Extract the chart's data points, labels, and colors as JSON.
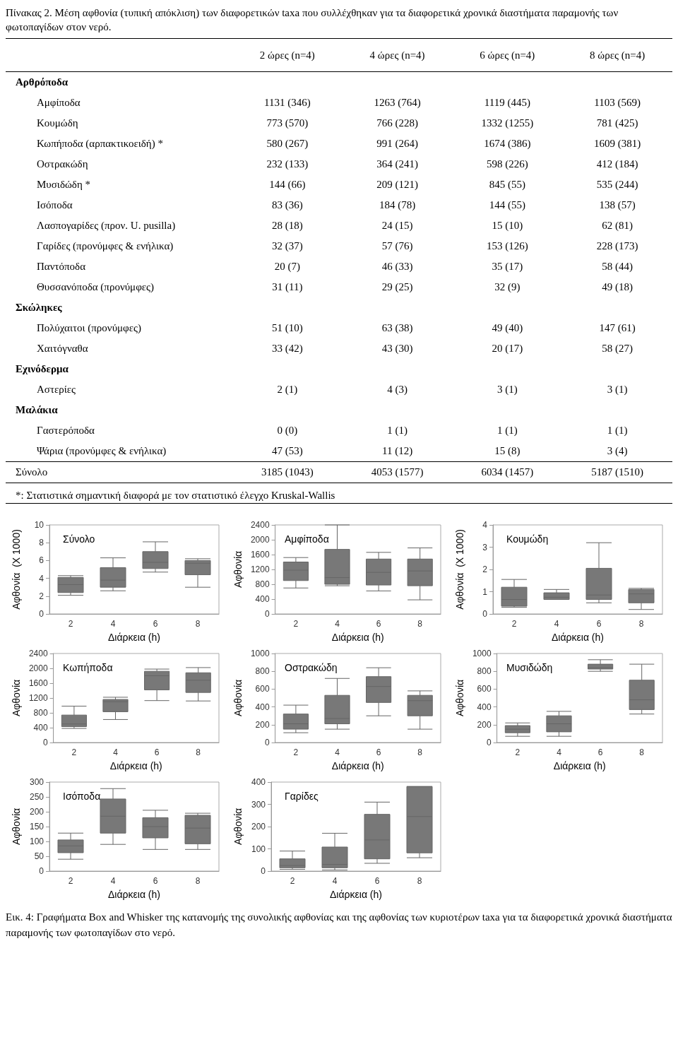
{
  "chart_data": [
    {
      "type": "other",
      "title": "Πίνακας 2. Μέση αφθονία (τυπική απόκλιση) των διαφορετικών taxa που συλλέχθηκαν για τα διαφορετικά χρονικά διαστήματα παραμονής των φωτοπαγίδων στον νερό.",
      "categories": [
        "2 ώρες (n=4)",
        "4 ώρες (n=4)",
        "6 ώρες (n=4)",
        "8 ώρες (n=4)"
      ],
      "y_categories": [
        "Αρθρόποδα",
        "Αμφίποδα",
        "Κουμώδη",
        "Κωπήποδα (αρπακτικοειδή) *",
        "Οστρακώδη",
        "Μυσιδώδη *",
        "Ισόποδα",
        "Λασπογαρίδες (προν. U. pusilla)",
        "Γαρίδες (προνύμφες & ενήλικα)",
        "Παντόποδα",
        "Θυσσανόποδα (προνύμφες)",
        "Σκώληκες",
        "Πολύχαιτοι (προνύμφες)",
        "Χαιτόγναθα",
        "Εχινόδερμα",
        "Αστερίες",
        "Μαλάκια",
        "Γαστερόποδα",
        "Ψάρια (προνύμφες & ενήλικα)",
        "Σύνολο"
      ],
      "cell_labels": [
        [
          null,
          null,
          null,
          null
        ],
        [
          "1131 (346)",
          "1263 (764)",
          "1119 (445)",
          "1103 (569)"
        ],
        [
          "773 (570)",
          "766 (228)",
          "1332 (1255)",
          "781 (425)"
        ],
        [
          "580 (267)",
          "991 (264)",
          "1674 (386)",
          "1609 (381)"
        ],
        [
          "232 (133)",
          "364 (241)",
          "598 (226)",
          "412 (184)"
        ],
        [
          "144 (66)",
          "209 (121)",
          "845 (55)",
          "535 (244)"
        ],
        [
          "83 (36)",
          "184 (78)",
          "144 (55)",
          "138 (57)"
        ],
        [
          "28 (18)",
          "24 (15)",
          "15 (10)",
          "62 (81)"
        ],
        [
          "32 (37)",
          "57 (76)",
          "153 (126)",
          "228 (173)"
        ],
        [
          "20 (7)",
          "46 (33)",
          "35 (17)",
          "58 (44)"
        ],
        [
          "31 (11)",
          "29 (25)",
          "32 (9)",
          "49 (18)"
        ],
        [
          null,
          null,
          null,
          null
        ],
        [
          "51 (10)",
          "63 (38)",
          "49 (40)",
          "147 (61)"
        ],
        [
          "33 (42)",
          "43 (30)",
          "20 (17)",
          "58 (27)"
        ],
        [
          null,
          null,
          null,
          null
        ],
        [
          "2 (1)",
          "4 (3)",
          "3 (1)",
          "3 (1)"
        ],
        [
          null,
          null,
          null,
          null
        ],
        [
          "0 (0)",
          "1 (1)",
          "1 (1)",
          "1 (1)"
        ],
        [
          "47 (53)",
          "11 (12)",
          "15 (8)",
          "3 (4)"
        ],
        [
          "3185 (1043)",
          "4053 (1577)",
          "6034 (1457)",
          "5187 (1510)"
        ]
      ],
      "annotations": [
        "*: Στατιστικά σημαντική διαφορά με τον στατιστικό έλεγχο Kruskal-Wallis"
      ]
    },
    {
      "type": "box",
      "title": "Σύνολο",
      "xlabel": "Διάρκεια (h)",
      "ylabel": "Αφθονία  (X 1000)",
      "categories": [
        "2",
        "4",
        "6",
        "8"
      ],
      "color": "#787878",
      "ylim": [
        0,
        10
      ],
      "yticks": [
        0,
        2,
        4,
        6,
        8,
        10
      ],
      "boxes": [
        {
          "low": 2.1,
          "q1": 2.4,
          "median": 3.3,
          "q3": 4.1,
          "high": 4.3
        },
        {
          "low": 2.6,
          "q1": 3.0,
          "median": 3.8,
          "q3": 5.2,
          "high": 6.3
        },
        {
          "low": 4.7,
          "q1": 5.1,
          "median": 5.8,
          "q3": 7.0,
          "high": 8.1
        },
        {
          "low": 3.0,
          "q1": 4.4,
          "median": 5.7,
          "q3": 6.0,
          "high": 6.2
        }
      ]
    },
    {
      "type": "box",
      "title": "Αμφίποδα",
      "xlabel": "Διάρκεια (h)",
      "ylabel": "Αφθονία",
      "categories": [
        "2",
        "4",
        "6",
        "8"
      ],
      "color": "#787878",
      "ylim": [
        0,
        2400
      ],
      "yticks": [
        0,
        400,
        800,
        1200,
        1600,
        2000,
        2400
      ],
      "boxes": [
        {
          "low": 700,
          "q1": 900,
          "median": 1180,
          "q3": 1400,
          "high": 1520
        },
        {
          "low": 760,
          "q1": 800,
          "median": 980,
          "q3": 1740,
          "high": 2400
        },
        {
          "low": 620,
          "q1": 780,
          "median": 1120,
          "q3": 1480,
          "high": 1660
        },
        {
          "low": 380,
          "q1": 760,
          "median": 1160,
          "q3": 1480,
          "high": 1780
        }
      ]
    },
    {
      "type": "box",
      "title": "Κουμώδη",
      "xlabel": "Διάρκεια (h)",
      "ylabel": "Αφθονία  (X 1000)",
      "categories": [
        "2",
        "4",
        "6",
        "8"
      ],
      "color": "#787878",
      "ylim": [
        0,
        4
      ],
      "yticks": [
        0,
        1,
        2,
        3,
        4
      ],
      "boxes": [
        {
          "low": 0.3,
          "q1": 0.35,
          "median": 0.65,
          "q3": 1.2,
          "high": 1.55
        },
        {
          "low": 0.65,
          "q1": 0.65,
          "median": 0.75,
          "q3": 0.95,
          "high": 1.1
        },
        {
          "low": 0.5,
          "q1": 0.65,
          "median": 0.85,
          "q3": 2.05,
          "high": 3.2
        },
        {
          "low": 0.2,
          "q1": 0.5,
          "median": 0.9,
          "q3": 1.1,
          "high": 1.15
        }
      ]
    },
    {
      "type": "box",
      "title": "Κωπήποδα",
      "xlabel": "Διάρκεια (h)",
      "ylabel": "Αφθονία",
      "categories": [
        "2",
        "4",
        "6",
        "8"
      ],
      "color": "#787878",
      "ylim": [
        0,
        2400
      ],
      "yticks": [
        0,
        400,
        800,
        1200,
        1600,
        2000,
        2400
      ],
      "boxes": [
        {
          "low": 380,
          "q1": 430,
          "median": 500,
          "q3": 740,
          "high": 980
        },
        {
          "low": 620,
          "q1": 830,
          "median": 1100,
          "q3": 1160,
          "high": 1220
        },
        {
          "low": 1130,
          "q1": 1420,
          "median": 1800,
          "q3": 1920,
          "high": 1980
        },
        {
          "low": 1120,
          "q1": 1350,
          "median": 1680,
          "q3": 1880,
          "high": 2020
        }
      ]
    },
    {
      "type": "box",
      "title": "Οστρακώδη",
      "xlabel": "Διάρκεια (h)",
      "ylabel": "Αφθονία",
      "categories": [
        "2",
        "4",
        "6",
        "8"
      ],
      "color": "#787878",
      "ylim": [
        0,
        1000
      ],
      "yticks": [
        0,
        200,
        400,
        600,
        800,
        1000
      ],
      "boxes": [
        {
          "low": 110,
          "q1": 150,
          "median": 210,
          "q3": 320,
          "high": 420
        },
        {
          "low": 150,
          "q1": 210,
          "median": 270,
          "q3": 530,
          "high": 720
        },
        {
          "low": 300,
          "q1": 450,
          "median": 630,
          "q3": 740,
          "high": 840
        },
        {
          "low": 150,
          "q1": 300,
          "median": 470,
          "q3": 530,
          "high": 580
        }
      ]
    },
    {
      "type": "box",
      "title": "Μυσιδώδη",
      "xlabel": "Διάρκεια (h)",
      "ylabel": "Αφθονία",
      "categories": [
        "2",
        "4",
        "6",
        "8"
      ],
      "color": "#787878",
      "ylim": [
        0,
        1000
      ],
      "yticks": [
        0,
        200,
        400,
        600,
        800,
        1000
      ],
      "boxes": [
        {
          "low": 70,
          "q1": 110,
          "median": 150,
          "q3": 190,
          "high": 220
        },
        {
          "low": 70,
          "q1": 120,
          "median": 210,
          "q3": 300,
          "high": 350
        },
        {
          "low": 800,
          "q1": 825,
          "median": 840,
          "q3": 880,
          "high": 930
        },
        {
          "low": 320,
          "q1": 370,
          "median": 480,
          "q3": 700,
          "high": 880
        }
      ]
    },
    {
      "type": "box",
      "title": "Ισόποδα",
      "xlabel": "Διάρκεια (h)",
      "ylabel": "Αφθονία",
      "categories": [
        "2",
        "4",
        "6",
        "8"
      ],
      "color": "#787878",
      "ylim": [
        0,
        300
      ],
      "yticks": [
        0,
        50,
        100,
        150,
        200,
        250,
        300
      ],
      "boxes": [
        {
          "low": 40,
          "q1": 62,
          "median": 85,
          "q3": 105,
          "high": 128
        },
        {
          "low": 90,
          "q1": 128,
          "median": 185,
          "q3": 243,
          "high": 278
        },
        {
          "low": 73,
          "q1": 112,
          "median": 150,
          "q3": 180,
          "high": 205
        },
        {
          "low": 73,
          "q1": 92,
          "median": 145,
          "q3": 188,
          "high": 195
        }
      ]
    },
    {
      "type": "box",
      "title": "Γαρίδες",
      "xlabel": "Διάρκεια (h)",
      "ylabel": "Αφθονία",
      "categories": [
        "2",
        "4",
        "6",
        "8"
      ],
      "color": "#787878",
      "ylim": [
        0,
        400
      ],
      "yticks": [
        0,
        100,
        200,
        300,
        400
      ],
      "boxes": [
        {
          "low": 8,
          "q1": 15,
          "median": 25,
          "q3": 55,
          "high": 90
        },
        {
          "low": 5,
          "q1": 15,
          "median": 30,
          "q3": 108,
          "high": 170
        },
        {
          "low": 35,
          "q1": 55,
          "median": 140,
          "q3": 255,
          "high": 310
        },
        {
          "low": 60,
          "q1": 82,
          "median": 245,
          "q3": 380,
          "high": 380
        }
      ]
    },
    {
      "type": "other",
      "annotations": [
        "Εικ. 4: Γραφήματα Box and Whisker της κατανομής της συνολικής αφθονίας και της αφθονίας των κυριοτέρων taxa  για τα διαφορετικά χρονικά διαστήματα παραμονής των φωτοπαγίδων στο νερό."
      ]
    }
  ]
}
